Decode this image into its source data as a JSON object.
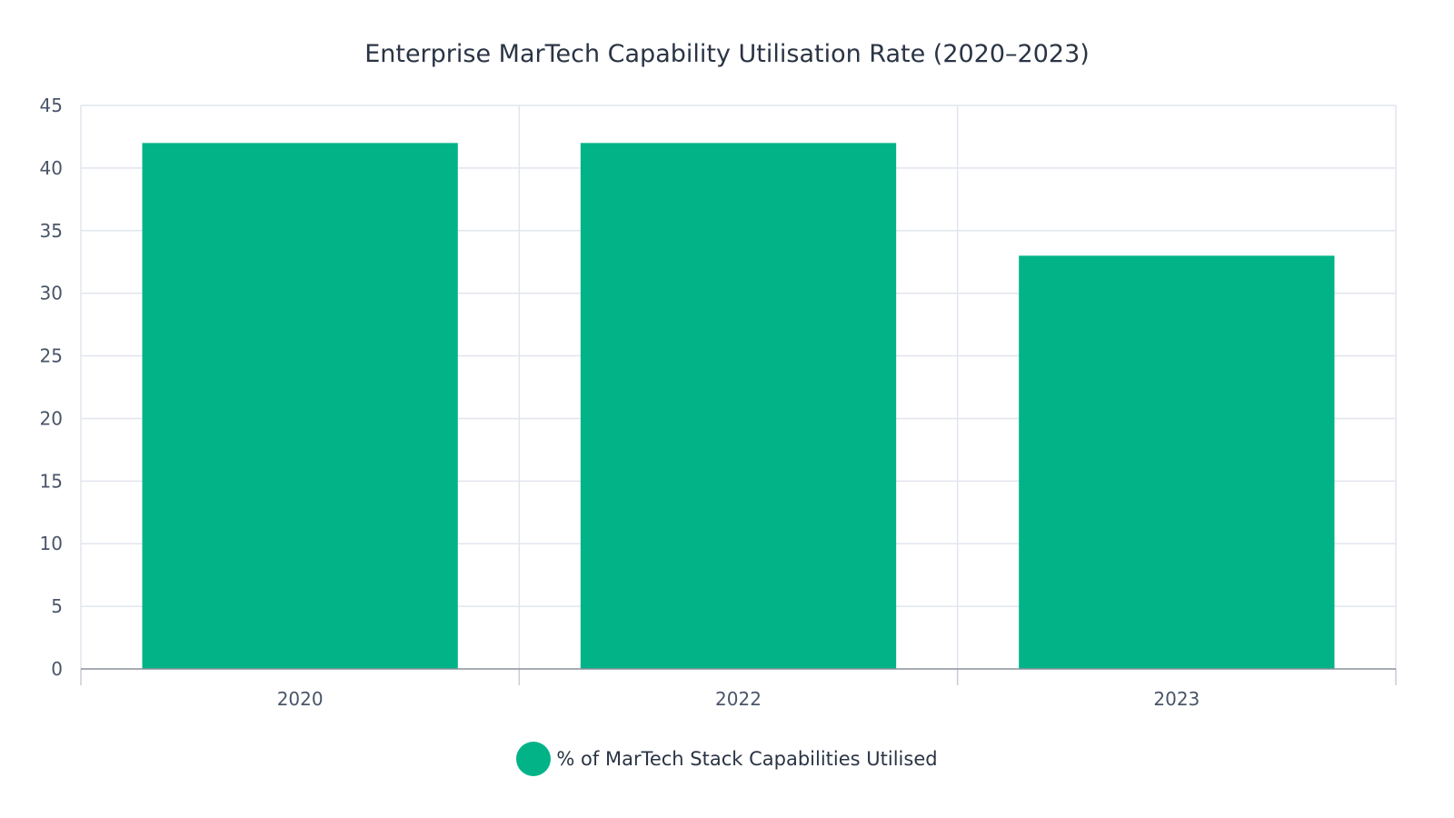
{
  "chart_data": {
    "type": "bar",
    "title": "Enterprise MarTech Capability Utilisation Rate (2020–2023)",
    "categories": [
      "2020",
      "2022",
      "2023"
    ],
    "series": [
      {
        "name": "% of MarTech Stack Capabilities Utilised",
        "values": [
          42,
          42,
          33
        ],
        "color": "#02b388"
      }
    ],
    "xlabel": "",
    "ylabel": "",
    "ylim": [
      0,
      45
    ],
    "yticks": [
      0,
      5,
      10,
      15,
      20,
      25,
      30,
      35,
      40,
      45
    ],
    "grid": true,
    "legend_position": "bottom"
  }
}
